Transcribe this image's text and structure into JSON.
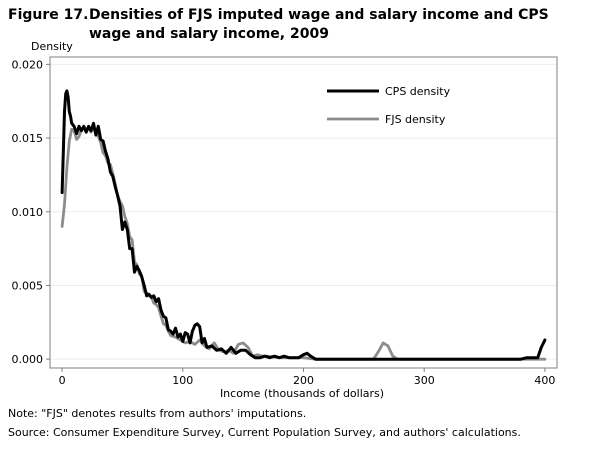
{
  "figure": {
    "label": "Figure 17.",
    "title": "Densities of FJS imputed wage and salary income and CPS wage and salary income, 2009"
  },
  "notes": [
    "Note: \"FJS\" denotes results from authors' imputations.",
    "Source: Consumer Expenditure Survey, Current Population Survey, and authors' calculations."
  ],
  "chart_data": {
    "type": "line",
    "title": "Densities of FJS imputed wage and salary income and CPS wage and salary income, 2009",
    "xlabel": "Income (thousands of dollars)",
    "ylabel": "Density",
    "xlim": [
      -10,
      410
    ],
    "ylim": [
      -0.0006,
      0.0205
    ],
    "xticks": [
      0,
      100,
      200,
      300,
      400
    ],
    "yticks": [
      0.0,
      0.005,
      0.01,
      0.015,
      0.02
    ],
    "ytick_labels": [
      "0.000",
      "0.005",
      "0.010",
      "0.015",
      "0.020"
    ],
    "grid": "horizontal",
    "legend_position": "top-right",
    "colors": {
      "CPS density": "#000000",
      "FJS density": "#8c8c8c"
    },
    "series": [
      {
        "name": "CPS density",
        "x": [
          0,
          1,
          2,
          3,
          4,
          5,
          6,
          7,
          8,
          10,
          12,
          14,
          16,
          18,
          20,
          22,
          24,
          26,
          28,
          30,
          32,
          34,
          36,
          38,
          40,
          42,
          44,
          46,
          48,
          50,
          52,
          54,
          56,
          58,
          60,
          62,
          64,
          66,
          68,
          70,
          72,
          74,
          76,
          78,
          80,
          82,
          84,
          86,
          88,
          90,
          92,
          94,
          96,
          98,
          100,
          102,
          104,
          106,
          108,
          110,
          112,
          114,
          116,
          118,
          120,
          124,
          128,
          132,
          136,
          140,
          144,
          148,
          152,
          156,
          160,
          164,
          168,
          172,
          176,
          180,
          184,
          188,
          192,
          196,
          200,
          203,
          206,
          210,
          215,
          220,
          240,
          260,
          280,
          300,
          320,
          340,
          360,
          380,
          385,
          390,
          394,
          397,
          400
        ],
        "values": [
          0.0113,
          0.014,
          0.0168,
          0.018,
          0.0182,
          0.0178,
          0.0168,
          0.0165,
          0.016,
          0.0158,
          0.0153,
          0.0158,
          0.0155,
          0.0158,
          0.0154,
          0.0158,
          0.0155,
          0.016,
          0.0152,
          0.0158,
          0.0149,
          0.0148,
          0.0141,
          0.0136,
          0.0127,
          0.0124,
          0.0117,
          0.0111,
          0.0104,
          0.0088,
          0.0093,
          0.0088,
          0.0075,
          0.0075,
          0.0059,
          0.0063,
          0.006,
          0.0056,
          0.005,
          0.0043,
          0.0044,
          0.0042,
          0.0043,
          0.0039,
          0.0041,
          0.0033,
          0.0029,
          0.0028,
          0.002,
          0.0019,
          0.0017,
          0.0021,
          0.0015,
          0.0017,
          0.0012,
          0.0018,
          0.0017,
          0.0011,
          0.0019,
          0.0023,
          0.0024,
          0.0022,
          0.0011,
          0.0014,
          0.0008,
          0.0009,
          0.0006,
          0.0007,
          0.0004,
          0.0008,
          0.0004,
          0.0006,
          0.0006,
          0.0003,
          0.0001,
          0.0001,
          0.0002,
          0.0001,
          0.0002,
          0.0001,
          0.0002,
          0.0001,
          0.0001,
          0.0001,
          0.0003,
          0.0004,
          0.0002,
          0.0,
          0.0,
          0.0,
          0.0,
          0.0,
          0.0,
          0.0,
          0.0,
          0.0,
          0.0,
          0.0,
          0.0001,
          0.0001,
          0.0001,
          0.0008,
          0.0013
        ]
      },
      {
        "name": "FJS density",
        "x": [
          0,
          2,
          4,
          6,
          8,
          10,
          12,
          14,
          16,
          18,
          20,
          22,
          24,
          26,
          28,
          30,
          32,
          34,
          36,
          38,
          40,
          42,
          44,
          46,
          48,
          50,
          52,
          54,
          56,
          58,
          60,
          62,
          64,
          66,
          68,
          70,
          72,
          74,
          76,
          78,
          80,
          82,
          84,
          86,
          88,
          90,
          94,
          98,
          102,
          106,
          110,
          114,
          118,
          122,
          126,
          130,
          134,
          138,
          142,
          146,
          150,
          154,
          158,
          162,
          166,
          170,
          180,
          190,
          200,
          210,
          220,
          230,
          240,
          250,
          258,
          262,
          266,
          270,
          274,
          278,
          290,
          310,
          330,
          350,
          370,
          390,
          400
        ],
        "values": [
          0.009,
          0.0105,
          0.013,
          0.0148,
          0.0156,
          0.0155,
          0.0149,
          0.0151,
          0.0156,
          0.0157,
          0.0156,
          0.0157,
          0.0154,
          0.0157,
          0.0155,
          0.0151,
          0.0147,
          0.014,
          0.0138,
          0.0133,
          0.0132,
          0.0126,
          0.0119,
          0.0111,
          0.0107,
          0.0104,
          0.0097,
          0.0092,
          0.0083,
          0.0081,
          0.0066,
          0.0064,
          0.0058,
          0.0056,
          0.0046,
          0.0045,
          0.0043,
          0.0042,
          0.0038,
          0.0037,
          0.0035,
          0.0029,
          0.0024,
          0.0023,
          0.0019,
          0.0016,
          0.0015,
          0.0013,
          0.0011,
          0.0012,
          0.001,
          0.0013,
          0.0009,
          0.0007,
          0.0011,
          0.0006,
          0.0005,
          0.0006,
          0.0004,
          0.001,
          0.0011,
          0.0008,
          0.0002,
          0.0003,
          0.0002,
          0.0002,
          0.0001,
          0.0001,
          0.0001,
          0.0,
          0.0,
          0.0,
          0.0,
          0.0,
          0.0,
          0.0005,
          0.0011,
          0.0009,
          0.0002,
          0.0,
          0.0,
          0.0,
          0.0,
          0.0,
          0.0,
          0.0,
          0.0
        ]
      }
    ]
  }
}
